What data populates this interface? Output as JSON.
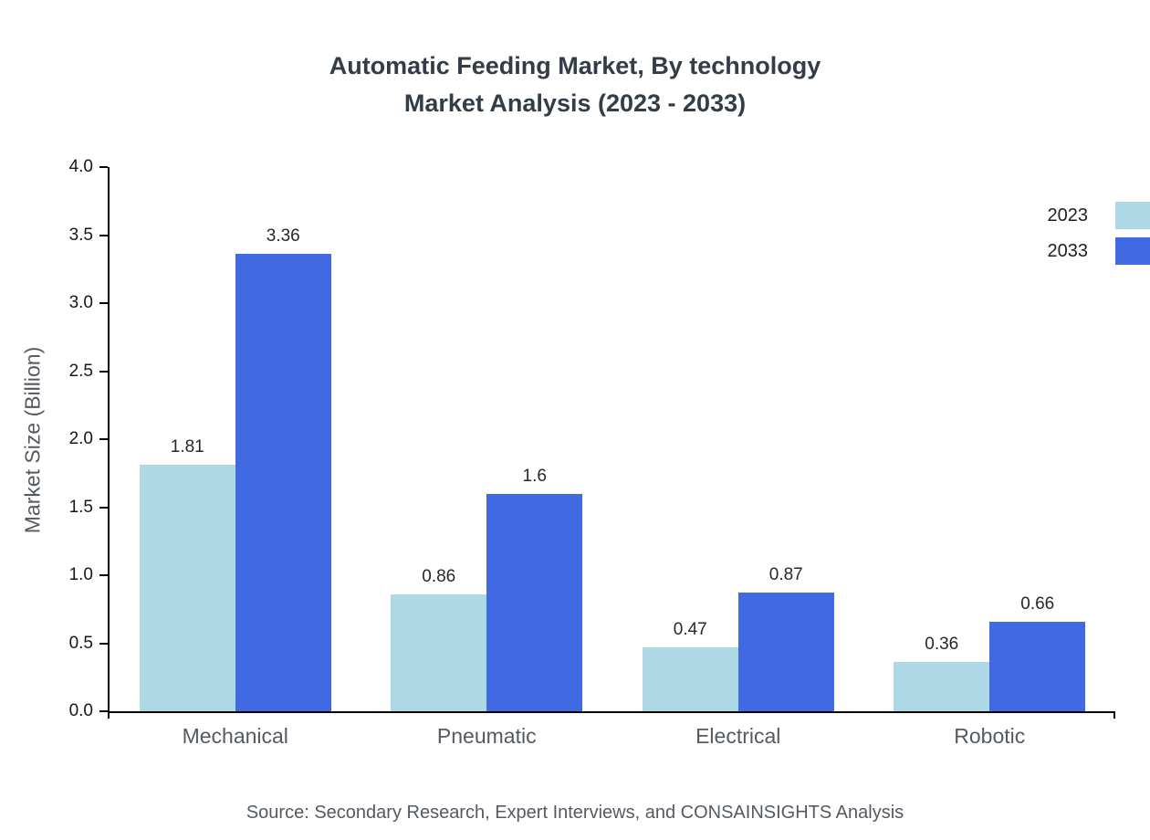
{
  "title": {
    "line1": "Automatic Feeding Market, By technology",
    "line2": "Market Analysis (2023 - 2033)"
  },
  "source": "Source: Secondary Research, Expert Interviews, and CONSAINSIGHTS Analysis",
  "chart_data": {
    "type": "bar",
    "categories": [
      "Mechanical",
      "Pneumatic",
      "Electrical",
      "Robotic"
    ],
    "series": [
      {
        "name": "2023",
        "color": "#ADD8E6",
        "values": [
          1.81,
          0.86,
          0.47,
          0.36
        ]
      },
      {
        "name": "2033",
        "color": "#4169E1",
        "values": [
          3.36,
          1.6,
          0.87,
          0.66
        ]
      }
    ],
    "title": "Automatic Feeding Market, By technology Market Analysis (2023 - 2033)",
    "xlabel": "",
    "ylabel": "Market Size (Billion)",
    "ylim": [
      0,
      4
    ],
    "ytick_step": 0.5,
    "ytick_labels": [
      "0.0",
      "0.5",
      "1.0",
      "1.5",
      "2.0",
      "2.5",
      "3.0",
      "3.5",
      "4.0"
    ],
    "grid": false,
    "legend_position": "top-right"
  }
}
